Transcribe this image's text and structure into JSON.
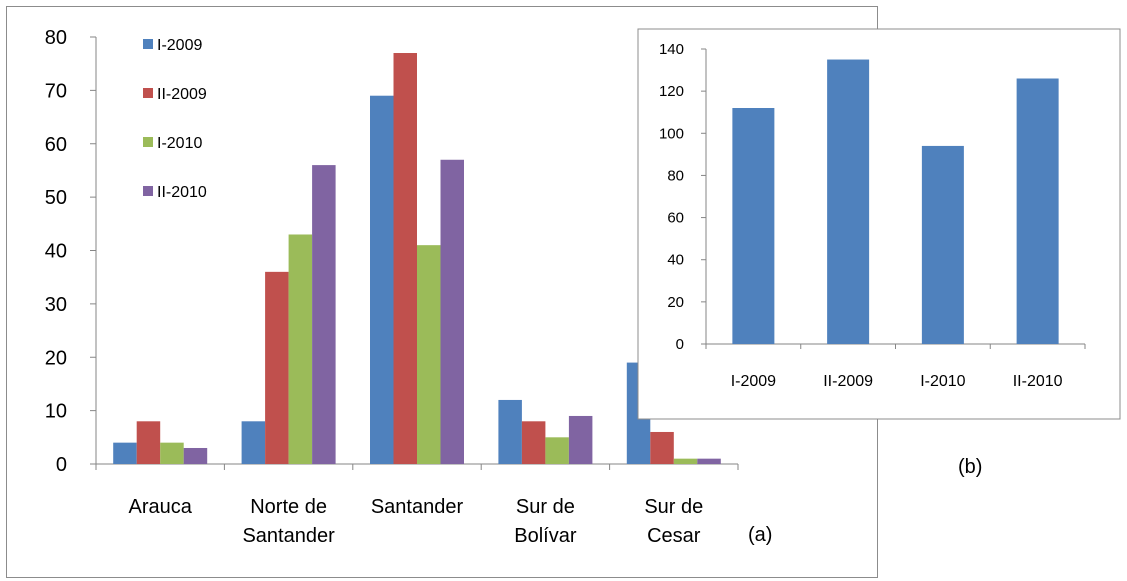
{
  "chart_data": [
    {
      "id": "a",
      "type": "bar",
      "categories": [
        "Arauca",
        "Norte de Santander",
        "Santander",
        "Sur de Bolívar",
        "Sur de Cesar"
      ],
      "category_lines": [
        [
          "Arauca"
        ],
        [
          "Norte de",
          "Santander"
        ],
        [
          "Santander"
        ],
        [
          "Sur de",
          "Bolívar"
        ],
        [
          "Sur de",
          "Cesar"
        ]
      ],
      "series": [
        {
          "name": "I-2009",
          "color": "#4f81bd",
          "values": [
            4,
            8,
            69,
            12,
            19
          ]
        },
        {
          "name": "II-2009",
          "color": "#c0504d",
          "values": [
            8,
            36,
            77,
            8,
            6
          ]
        },
        {
          "name": "I-2010",
          "color": "#9bbb59",
          "values": [
            4,
            43,
            41,
            5,
            1
          ]
        },
        {
          "name": "II-2010",
          "color": "#8064a2",
          "values": [
            3,
            56,
            57,
            9,
            1
          ]
        }
      ],
      "ylim": [
        0,
        80
      ],
      "yticks": [
        0,
        10,
        20,
        30,
        40,
        50,
        60,
        70,
        80
      ],
      "legend": "top-left",
      "grid": false
    },
    {
      "id": "b",
      "type": "bar",
      "categories": [
        "I-2009",
        "II-2009",
        "I-2010",
        "II-2010"
      ],
      "series": [
        {
          "color": "#4f81bd",
          "values": [
            112,
            135,
            94,
            126
          ]
        }
      ],
      "ylim": [
        0,
        140
      ],
      "yticks": [
        0,
        20,
        40,
        60,
        80,
        100,
        120,
        140
      ],
      "grid": false
    }
  ],
  "captions": {
    "a": "(a)",
    "b": "(b)"
  }
}
